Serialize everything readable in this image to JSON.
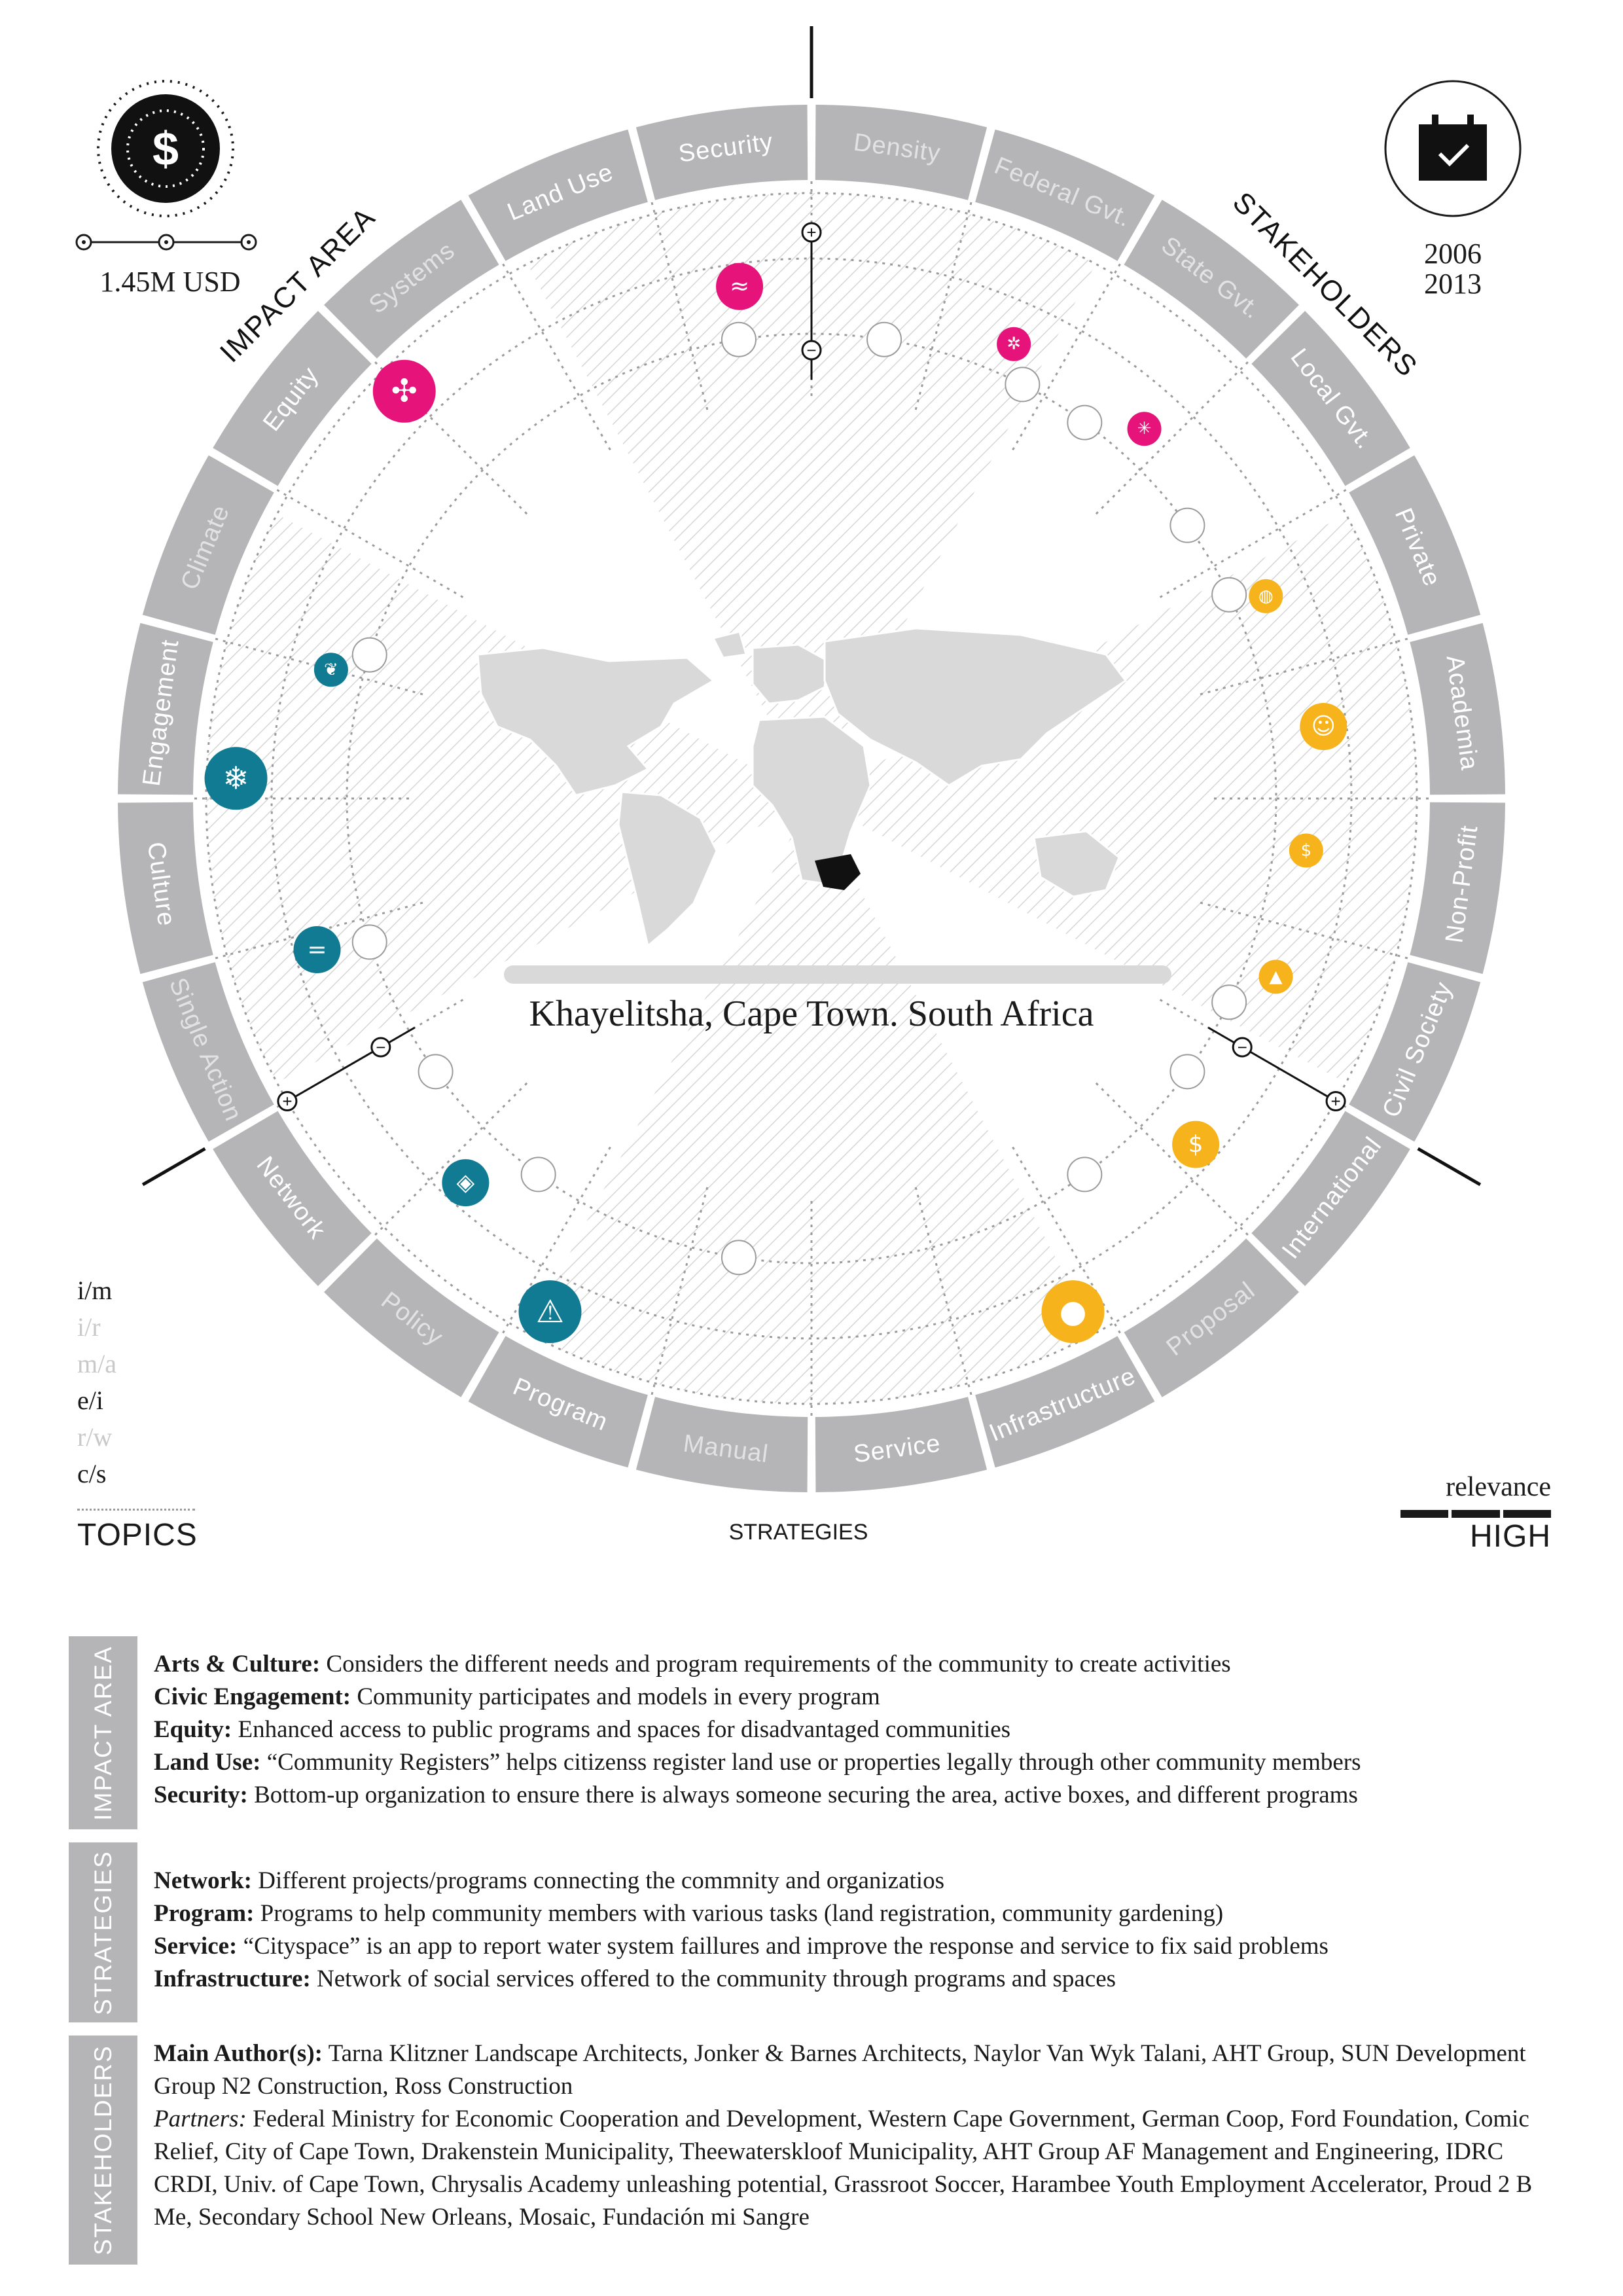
{
  "budget": {
    "label": "1.45M USD"
  },
  "years": {
    "start": "2006",
    "end": "2013"
  },
  "location": "Khayelitsha, Cape Town. South Africa",
  "wheel": {
    "impact_area_title": "IMPACT AREA",
    "stakeholders_title": "STAKEHOLDERS",
    "strategies_title": "STRATEGIES",
    "segments": [
      {
        "label": "Density",
        "active": false
      },
      {
        "label": "Federal Gvt.",
        "active": false
      },
      {
        "label": "State Gvt.",
        "active": false
      },
      {
        "label": "Local Gvt.",
        "active": true
      },
      {
        "label": "Private",
        "active": true
      },
      {
        "label": "Academia",
        "active": true
      },
      {
        "label": "Non-Profit",
        "active": true
      },
      {
        "label": "Civil Society",
        "active": true
      },
      {
        "label": "International",
        "active": true
      },
      {
        "label": "Proposal",
        "active": false
      },
      {
        "label": "Infrastructure",
        "active": true
      },
      {
        "label": "Service",
        "active": true
      },
      {
        "label": "Manual",
        "active": false
      },
      {
        "label": "Program",
        "active": true
      },
      {
        "label": "Policy",
        "active": false
      },
      {
        "label": "Network",
        "active": true
      },
      {
        "label": "Single Action",
        "active": false
      },
      {
        "label": "Culture",
        "active": true
      },
      {
        "label": "Engagement",
        "active": true
      },
      {
        "label": "Climate",
        "active": false
      },
      {
        "label": "Equity",
        "active": true
      },
      {
        "label": "Systems",
        "active": false
      },
      {
        "label": "Land Use",
        "active": true
      },
      {
        "label": "Security",
        "active": true
      }
    ],
    "markers": [
      {
        "group": "impact",
        "icon": "warning-icon",
        "glyph": "⚠",
        "angle": -63,
        "level": 3
      },
      {
        "group": "impact",
        "icon": "layers-icon",
        "glyph": "◈",
        "angle": -48,
        "level": 2
      },
      {
        "group": "impact",
        "icon": "equals-icon",
        "glyph": "=",
        "angle": -17,
        "level": 2
      },
      {
        "group": "impact",
        "icon": "snowflake-icon",
        "glyph": "❄",
        "angle": 2,
        "level": 3
      },
      {
        "group": "impact",
        "icon": "leaf-icon",
        "glyph": "❦",
        "angle": 15,
        "level": 1
      },
      {
        "group": "stake",
        "icon": "coins-icon",
        "glyph": "●",
        "angle": -117,
        "level": 3
      },
      {
        "group": "stake",
        "icon": "dollar-icon",
        "glyph": "$",
        "angle": -138,
        "level": 2
      },
      {
        "group": "stake",
        "icon": "mortarboard-icon",
        "glyph": "▲",
        "angle": -159,
        "level": 1
      },
      {
        "group": "stake",
        "icon": "hand-coin-icon",
        "glyph": "$",
        "angle": -174,
        "level": 1
      },
      {
        "group": "stake",
        "icon": "people-icon",
        "glyph": "☺",
        "angle": 172,
        "level": 2
      },
      {
        "group": "stake",
        "icon": "globe-icon",
        "glyph": "◍",
        "angle": 156,
        "level": 1
      },
      {
        "group": "strategy",
        "icon": "network-icon",
        "glyph": "✣",
        "angle": 45,
        "level": 3
      },
      {
        "group": "strategy",
        "icon": "waves-icon",
        "glyph": "≈",
        "angle": 82,
        "level": 2
      },
      {
        "group": "strategy",
        "icon": "gear-icon",
        "glyph": "✲",
        "angle": 114,
        "level": 1
      },
      {
        "group": "strategy",
        "icon": "infra-icon",
        "glyph": "✳",
        "angle": 132,
        "level": 1
      }
    ]
  },
  "topics": [
    {
      "label": "i/m",
      "active": true
    },
    {
      "label": "i/r",
      "active": false
    },
    {
      "label": "m/a",
      "active": false
    },
    {
      "label": "e/i",
      "active": true
    },
    {
      "label": "r/w",
      "active": false
    },
    {
      "label": "c/s",
      "active": true
    }
  ],
  "topics_title": "TOPICS",
  "strategies_title": "STRATEGIES",
  "relevance": {
    "label": "relevance",
    "level": "HIGH"
  },
  "sections": {
    "impact_area": {
      "tab": "IMPACT AREA",
      "items": [
        {
          "term": "Arts & Culture:",
          "text": " Considers the different needs and program requirements of the community to create activities"
        },
        {
          "term": "Civic Engagement:",
          "text": " Community participates and models in every program"
        },
        {
          "term": "Equity:",
          "text": " Enhanced access to public programs and spaces for disadvantaged communities"
        },
        {
          "term": "Land Use:",
          "text": " “Community Registers” helps citizenss register land use or properties legally through other community members"
        },
        {
          "term": "Security:",
          "text": " Bottom-up organization to ensure there is always someone securing the area, active boxes, and different programs"
        }
      ]
    },
    "strategies": {
      "tab": "STRATEGIES",
      "items": [
        {
          "term": "Network:",
          "text": " Different projects/programs connecting the commnity and organizatios"
        },
        {
          "term": "Program:",
          "text": " Programs to help community members with various tasks (land registration, community gardening)"
        },
        {
          "term": "Service:",
          "text": " “Cityspace” is an app to report water system faillures and improve the response and service to fix said problems"
        },
        {
          "term": "Infrastructure:",
          "text": " Network of social services offered to the community through programs and spaces"
        }
      ]
    },
    "stakeholders": {
      "tab": "STAKEHOLDERS",
      "main_term": "Main Author(s):",
      "main_text": " Tarna Klitzner Landscape Architects, Jonker & Barnes Architects, Naylor Van Wyk Talani, AHT Group, SUN Development Group N2 Construction, Ross Construction",
      "partners_term": "Partners:",
      "partners_text": " Federal Ministry for Economic Cooperation and Development, Western Cape Government, German Coop, Ford Foundation, Comic Relief, City of Cape Town, Drakenstein Municipality, Theewaterskloof Municipality, AHT Group AF Management and Engineering, IDRC CRDI, Univ. of Cape Town, Chrysalis Academy unleashing potential, Grassroot Soccer, Harambee Youth Employment Accelerator, Proud 2 B Me, Secondary School New Orleans, Mosaic, Fundación mi Sangre"
    }
  },
  "colors": {
    "ring": "#b5b5b7",
    "ring_text": "#ffffff",
    "ring_text_off": "#e2e2e2",
    "impact": "#127b94",
    "stake": "#f6b31b",
    "strategy": "#e5137a",
    "grid": "#9b9b9b",
    "map": "#d9d9d9"
  }
}
